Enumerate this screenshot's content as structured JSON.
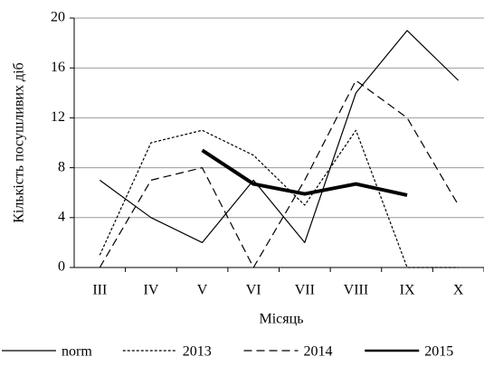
{
  "chart_data": {
    "type": "line",
    "x_label": "Місяць",
    "y_label": "Кількість посушливих діб",
    "categories": [
      "III",
      "IV",
      "V",
      "VI",
      "VII",
      "VIII",
      "IX",
      "X"
    ],
    "ylim": [
      0,
      20
    ],
    "yticks": [
      0,
      4,
      8,
      12,
      16,
      20
    ],
    "grid": true,
    "series": [
      {
        "name": "norm",
        "color": "#000000",
        "style": "solid",
        "width": 1.2,
        "values": [
          7,
          4,
          2,
          7,
          2,
          14,
          19,
          15
        ]
      },
      {
        "name": "2013",
        "color": "#000000",
        "style": "dotted",
        "width": 1.2,
        "values": [
          1,
          10,
          11,
          9,
          5,
          11,
          0,
          0
        ]
      },
      {
        "name": "2014",
        "color": "#000000",
        "style": "dashed",
        "width": 1.2,
        "values": [
          0,
          7,
          8,
          0,
          7,
          15,
          12,
          5
        ]
      },
      {
        "name": "2015",
        "color": "#000000",
        "style": "solid",
        "width": 4,
        "values": [
          null,
          null,
          9.4,
          6.7,
          5.9,
          6.7,
          5.8,
          null
        ]
      }
    ]
  }
}
